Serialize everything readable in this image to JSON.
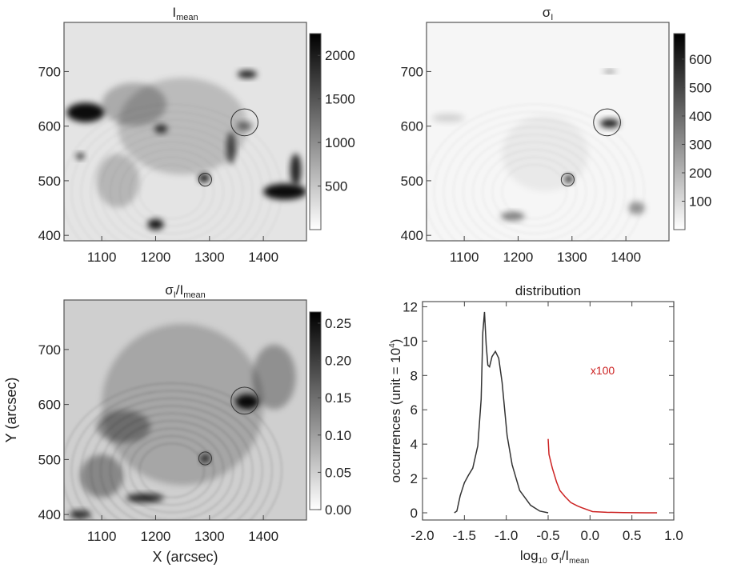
{
  "chart_data": [
    {
      "type": "heatmap",
      "title": "I",
      "title_sub": "mean",
      "xlim": [
        1030,
        1480
      ],
      "ylim": [
        390,
        790
      ],
      "xticks": [
        "1100",
        "1200",
        "1300",
        "1400"
      ],
      "yticks": [
        "400",
        "500",
        "600",
        "700"
      ],
      "colorbar": {
        "ticks": [
          "500",
          "1000",
          "1500",
          "2000"
        ],
        "range": [
          0,
          2250
        ],
        "colormap": "inverted-gray"
      },
      "circles": [
        {
          "x": 1365,
          "y": 607,
          "r": 25
        },
        {
          "x": 1292,
          "y": 502,
          "r": 12
        }
      ]
    },
    {
      "type": "heatmap",
      "title": "σ",
      "title_sub": "I",
      "xlim": [
        1030,
        1480
      ],
      "ylim": [
        390,
        790
      ],
      "xticks": [
        "1100",
        "1200",
        "1300",
        "1400"
      ],
      "yticks": [
        "400",
        "500",
        "600",
        "700"
      ],
      "colorbar": {
        "ticks": [
          "100",
          "200",
          "300",
          "400",
          "500",
          "600"
        ],
        "range": [
          0,
          690
        ],
        "colormap": "inverted-gray"
      },
      "circles": [
        {
          "x": 1365,
          "y": 607,
          "r": 25
        },
        {
          "x": 1292,
          "y": 502,
          "r": 12
        }
      ]
    },
    {
      "type": "heatmap",
      "title": "σ",
      "title_sub": "I",
      "title_rest": "/I",
      "title_sub2": "mean",
      "xlim": [
        1030,
        1480
      ],
      "ylim": [
        390,
        790
      ],
      "xlabel": "X (arcsec)",
      "ylabel": "Y (arcsec)",
      "xticks": [
        "1100",
        "1200",
        "1300",
        "1400"
      ],
      "yticks": [
        "400",
        "500",
        "600",
        "700"
      ],
      "colorbar": {
        "ticks": [
          "0.00",
          "0.05",
          "0.10",
          "0.15",
          "0.20",
          "0.25"
        ],
        "range": [
          0,
          0.265
        ],
        "colormap": "inverted-gray"
      },
      "circles": [
        {
          "x": 1365,
          "y": 607,
          "r": 25
        },
        {
          "x": 1292,
          "y": 502,
          "r": 12
        }
      ]
    },
    {
      "type": "line",
      "title": "distribution",
      "xlabel": "log",
      "xlabel_sub": "10",
      "xlabel_rest": " σ",
      "xlabel_sub2": "I",
      "xlabel_rest2": "/I",
      "xlabel_sub3": "mean",
      "ylabel": "occurrences (unit = 10",
      "ylabel_sup": "4",
      "ylabel_end": ")",
      "xlim": [
        -2.0,
        1.0
      ],
      "ylim": [
        0,
        12.3
      ],
      "xticks": [
        "-2.0",
        "-1.5",
        "-1.0",
        "-0.5",
        "0.0",
        "0.5",
        "1.0"
      ],
      "yticks": [
        "0",
        "2",
        "4",
        "6",
        "8",
        "10",
        "12"
      ],
      "annotation": {
        "text": "x100",
        "color": "#cc2222"
      },
      "series": [
        {
          "color": "#333333",
          "x": [
            -1.62,
            -1.59,
            -1.55,
            -1.5,
            -1.45,
            -1.4,
            -1.34,
            -1.3,
            -1.28,
            -1.26,
            -1.24,
            -1.22,
            -1.2,
            -1.17,
            -1.13,
            -1.09,
            -1.05,
            -0.99,
            -0.93,
            -0.84,
            -0.71,
            -0.6,
            -0.5
          ],
          "y": [
            0,
            0.1,
            1.0,
            1.75,
            2.2,
            2.6,
            3.9,
            6.6,
            10.5,
            11.7,
            9.8,
            8.6,
            8.5,
            9.1,
            9.4,
            9.0,
            7.6,
            4.5,
            2.8,
            1.3,
            0.44,
            0.1,
            0
          ]
        },
        {
          "color": "#cc2222",
          "x": [
            -0.5,
            -0.49,
            -0.45,
            -0.4,
            -0.36,
            -0.3,
            -0.23,
            -0.15,
            -0.1,
            0.03,
            0.2,
            0.4,
            0.67,
            0.8
          ],
          "y": [
            4.3,
            3.4,
            2.6,
            1.8,
            1.3,
            0.95,
            0.6,
            0.4,
            0.3,
            0.07,
            0.03,
            0.01,
            0,
            0
          ]
        }
      ]
    }
  ]
}
